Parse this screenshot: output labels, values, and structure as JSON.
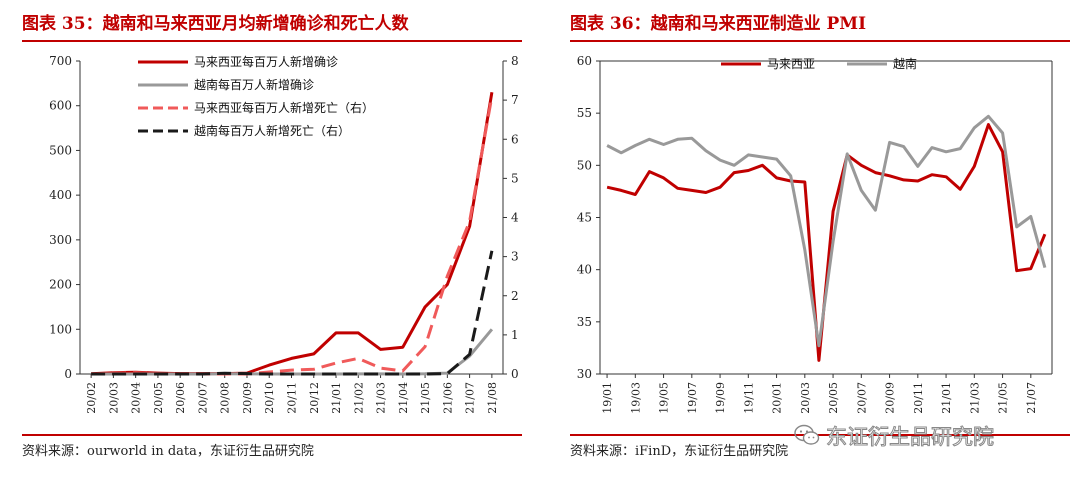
{
  "left_panel": {
    "title": "图表 35：越南和马来西亚月均新增确诊和死亡人数",
    "source": "资料来源：ourworld in data，东证衍生品研究院"
  },
  "right_panel": {
    "title": "图表 36：越南和马来西亚制造业 PMI",
    "source": "资料来源：iFinD，东证衍生品研究院"
  },
  "watermark": {
    "text": "东证衍生品研究院",
    "icon": "wechat-icon"
  },
  "chart_data": [
    {
      "type": "line",
      "categories": [
        "20/02",
        "20/03",
        "20/04",
        "20/05",
        "20/06",
        "20/07",
        "20/08",
        "20/09",
        "20/10",
        "20/11",
        "20/12",
        "21/01",
        "21/02",
        "21/03",
        "21/04",
        "21/05",
        "21/06",
        "21/07",
        "21/08"
      ],
      "ylim": [
        0,
        700
      ],
      "yticks": [
        0,
        100,
        200,
        300,
        400,
        500,
        600,
        700
      ],
      "y2lim": [
        0,
        8
      ],
      "y2ticks": [
        0,
        1,
        2,
        3,
        4,
        5,
        6,
        7,
        8
      ],
      "legend_position": "top-center",
      "series": [
        {
          "name": "马来西亚每百万人新增确诊",
          "axis": "left",
          "color": "#c00000",
          "style": "solid",
          "values": [
            0.5,
            3,
            4,
            2,
            1,
            1,
            1,
            2,
            20,
            35,
            45,
            92,
            92,
            55,
            60,
            150,
            200,
            330,
            630
          ]
        },
        {
          "name": "越南每百万人新增确诊",
          "axis": "left",
          "color": "#999999",
          "style": "solid",
          "values": [
            0,
            0.1,
            0.1,
            0,
            0,
            0.1,
            0.5,
            0.2,
            0,
            0,
            0,
            0.1,
            0.3,
            0.2,
            0.1,
            0.5,
            2,
            40,
            100
          ]
        },
        {
          "name": "马来西亚每百万人新增死亡（右）",
          "axis": "right",
          "color": "#f05a5a",
          "style": "dashed",
          "values": [
            0,
            0.02,
            0.03,
            0.01,
            0,
            0,
            0,
            0,
            0.05,
            0.1,
            0.12,
            0.28,
            0.4,
            0.15,
            0.08,
            0.7,
            2.5,
            3.9,
            7.1
          ]
        },
        {
          "name": "越南每百万人新增死亡（右）",
          "axis": "right",
          "color": "#1a1a1a",
          "style": "dashed",
          "values": [
            0,
            0,
            0,
            0,
            0,
            0,
            0.02,
            0.01,
            0,
            0,
            0,
            0,
            0,
            0,
            0,
            0,
            0.01,
            0.5,
            3.15
          ]
        }
      ]
    },
    {
      "type": "line",
      "categories": [
        "19/01",
        "19/02",
        "19/03",
        "19/04",
        "19/05",
        "19/06",
        "19/07",
        "19/08",
        "19/09",
        "19/10",
        "19/11",
        "19/12",
        "20/01",
        "20/02",
        "20/03",
        "20/04",
        "20/05",
        "20/06",
        "20/07",
        "20/08",
        "20/09",
        "20/10",
        "20/11",
        "20/12",
        "21/01",
        "21/02",
        "21/03",
        "21/04",
        "21/05",
        "21/06",
        "21/07",
        "21/08"
      ],
      "xtick_labels": [
        "19/01",
        "19/03",
        "19/05",
        "19/07",
        "19/09",
        "19/11",
        "20/01",
        "20/03",
        "20/05",
        "20/07",
        "20/09",
        "20/11",
        "21/01",
        "21/03",
        "21/05",
        "21/07"
      ],
      "ylim": [
        30,
        60
      ],
      "yticks": [
        30,
        35,
        40,
        45,
        50,
        55,
        60
      ],
      "legend_position": "top-center",
      "series": [
        {
          "name": "马来西亚",
          "color": "#c00000",
          "style": "solid",
          "values": [
            47.9,
            47.6,
            47.2,
            49.4,
            48.8,
            47.8,
            47.6,
            47.4,
            47.9,
            49.3,
            49.5,
            50.0,
            48.8,
            48.5,
            48.4,
            31.3,
            45.6,
            51.0,
            50.0,
            49.3,
            49.0,
            48.6,
            48.5,
            49.1,
            48.9,
            47.7,
            49.9,
            53.9,
            51.3,
            39.9,
            40.1,
            43.4
          ]
        },
        {
          "name": "越南",
          "color": "#999999",
          "style": "solid",
          "values": [
            51.9,
            51.2,
            51.9,
            52.5,
            52.0,
            52.5,
            52.6,
            51.4,
            50.5,
            50.0,
            51.0,
            50.8,
            50.6,
            49.0,
            41.9,
            32.7,
            42.7,
            51.1,
            47.6,
            45.7,
            52.2,
            51.8,
            49.9,
            51.7,
            51.3,
            51.6,
            53.6,
            54.7,
            53.1,
            44.1,
            45.1,
            40.2
          ]
        }
      ]
    }
  ]
}
